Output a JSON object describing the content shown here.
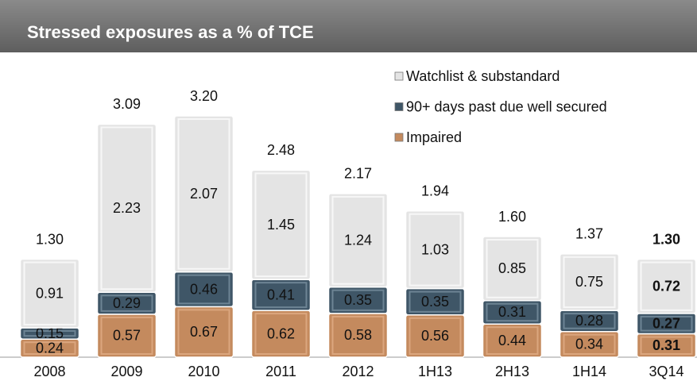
{
  "chart_data": {
    "type": "stacked-bar",
    "title": "Stressed exposures as a % of TCE",
    "categories": [
      "2008",
      "2009",
      "2010",
      "2011",
      "2012",
      "1H13",
      "2H13",
      "1H14",
      "3Q14"
    ],
    "series": [
      {
        "name": "Impaired",
        "color": "#c48a5e",
        "values": [
          0.24,
          0.57,
          0.67,
          0.62,
          0.58,
          0.56,
          0.44,
          0.34,
          0.31
        ]
      },
      {
        "name": "90+ days past due well secured",
        "color": "#3f5667",
        "values": [
          0.15,
          0.29,
          0.46,
          0.41,
          0.35,
          0.35,
          0.31,
          0.28,
          0.27
        ]
      },
      {
        "name": "Watchlist & substandard",
        "color": "#e4e4e4",
        "values": [
          0.91,
          2.23,
          2.07,
          1.45,
          1.24,
          1.03,
          0.85,
          0.75,
          0.72
        ]
      }
    ],
    "totals": {
      "values": [
        1.3,
        3.09,
        3.2,
        2.48,
        2.17,
        1.94,
        1.6,
        1.37,
        1.3
      ],
      "value_labels": [
        "1.30",
        "3.09",
        "3.20",
        "2.48",
        "2.17",
        "1.94",
        "1.60",
        "1.37",
        "1.30"
      ]
    },
    "ylim": [
      0,
      4
    ],
    "bold_index": 8
  }
}
